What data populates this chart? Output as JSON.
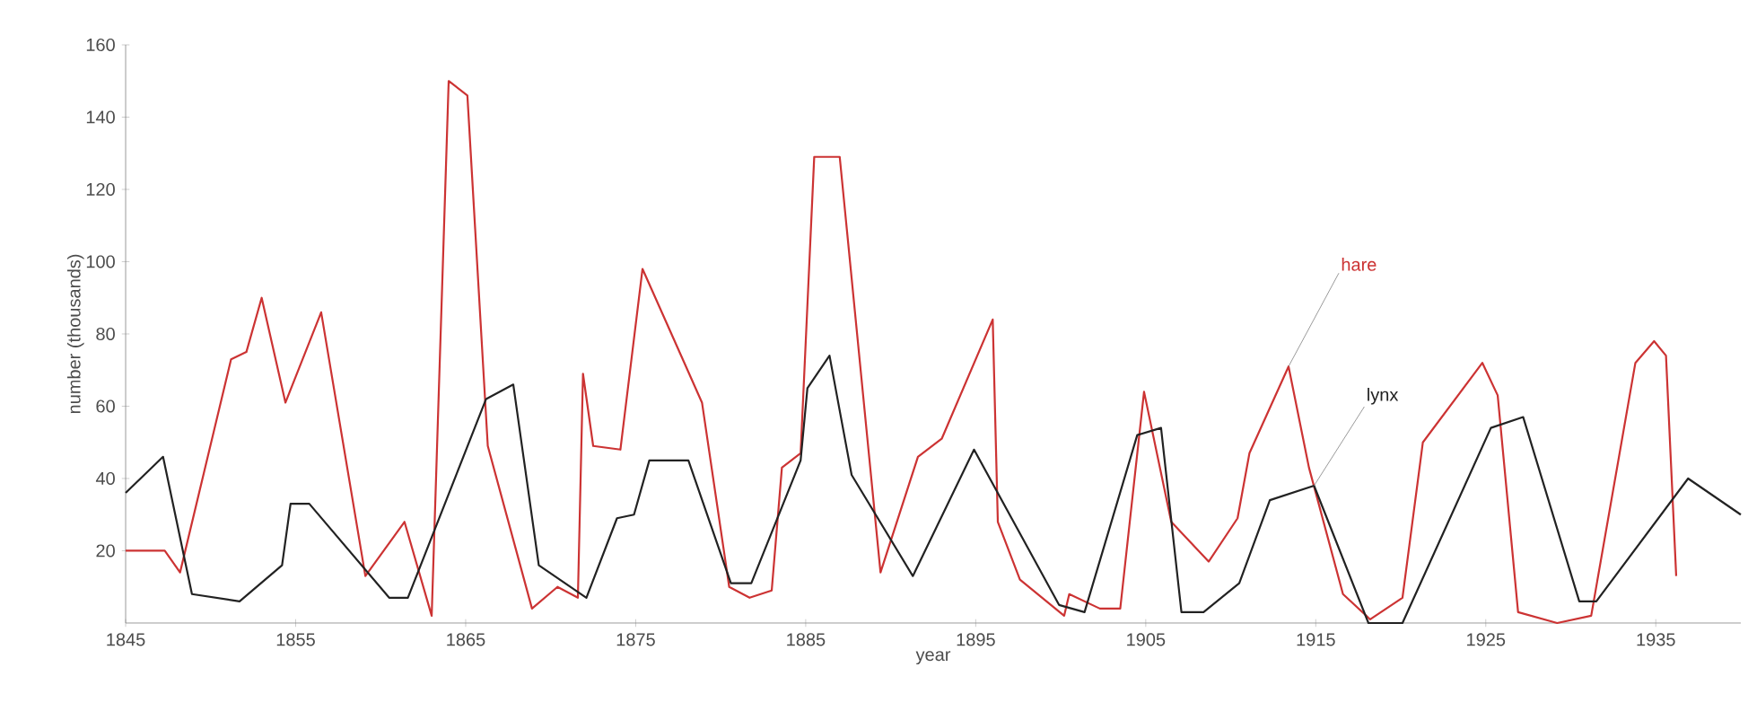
{
  "chart_data": {
    "type": "line",
    "xlabel": "year",
    "ylabel": "number (thousands)",
    "xlim": [
      1845,
      1940
    ],
    "ylim": [
      0,
      160
    ],
    "xticks": [
      1845,
      1855,
      1865,
      1875,
      1885,
      1895,
      1905,
      1915,
      1925,
      1935
    ],
    "yticks": [
      20,
      40,
      60,
      80,
      100,
      120,
      140,
      160
    ],
    "grid": false,
    "legend": false,
    "line_style": "solid",
    "series": [
      {
        "name": "hare",
        "color": "#cc3333",
        "x": [
          1845,
          1847.3,
          1848.2,
          1851.2,
          1852.1,
          1853,
          1854.4,
          1856.5,
          1859.1,
          1861.4,
          1863,
          1864,
          1865.1,
          1866.3,
          1868.9,
          1870.4,
          1871.6,
          1871.9,
          1872.5,
          1874.1,
          1875.4,
          1878.9,
          1880.5,
          1881.7,
          1883,
          1883.6,
          1884.7,
          1885.5,
          1887,
          1889.4,
          1891.6,
          1893,
          1896,
          1896.3,
          1897.6,
          1900.2,
          1900.5,
          1902.3,
          1903.5,
          1904.9,
          1906.5,
          1908.7,
          1910.4,
          1911.1,
          1913.4,
          1914.6,
          1916.6,
          1918.2,
          1920.1,
          1921.3,
          1924.8,
          1925.7,
          1926.9,
          1929.2,
          1931.2,
          1933.8,
          1934.9,
          1935.6,
          1936.2
        ],
        "values": [
          20,
          20,
          14,
          73,
          75,
          90,
          61,
          86,
          13,
          28,
          2,
          150,
          146,
          49,
          4,
          10,
          7,
          69,
          49,
          48,
          98,
          61,
          10,
          7,
          9,
          43,
          47,
          129,
          129,
          14,
          46,
          51,
          84,
          28,
          12,
          2,
          8,
          4,
          4,
          64,
          28,
          17,
          29,
          47,
          71,
          43,
          8,
          1,
          7,
          50,
          72,
          63,
          3,
          0,
          2,
          72,
          78,
          74,
          13
        ]
      },
      {
        "name": "lynx",
        "color": "#222222",
        "x": [
          1845,
          1847.2,
          1848.9,
          1851.7,
          1854.2,
          1854.7,
          1855.8,
          1860.5,
          1861.6,
          1866.2,
          1867.8,
          1869.3,
          1872.1,
          1873.9,
          1874.9,
          1875.8,
          1878.1,
          1880.6,
          1881.8,
          1884.7,
          1885.1,
          1886.4,
          1887.7,
          1891.3,
          1894.9,
          1899.9,
          1901.4,
          1904.5,
          1905.9,
          1907.1,
          1908.4,
          1910.5,
          1912.3,
          1914.9,
          1918.1,
          1920.1,
          1925.3,
          1927.2,
          1930.5,
          1931.5,
          1936.9,
          1940
        ],
        "values": [
          36,
          46,
          8,
          6,
          16,
          33,
          33,
          7,
          7,
          62,
          66,
          16,
          7,
          29,
          30,
          45,
          45,
          11,
          11,
          45,
          65,
          74,
          41,
          13,
          48,
          5,
          3,
          52,
          54,
          3,
          3,
          11,
          34,
          38,
          0,
          0,
          54,
          57,
          6,
          6,
          40,
          30
        ]
      }
    ]
  }
}
